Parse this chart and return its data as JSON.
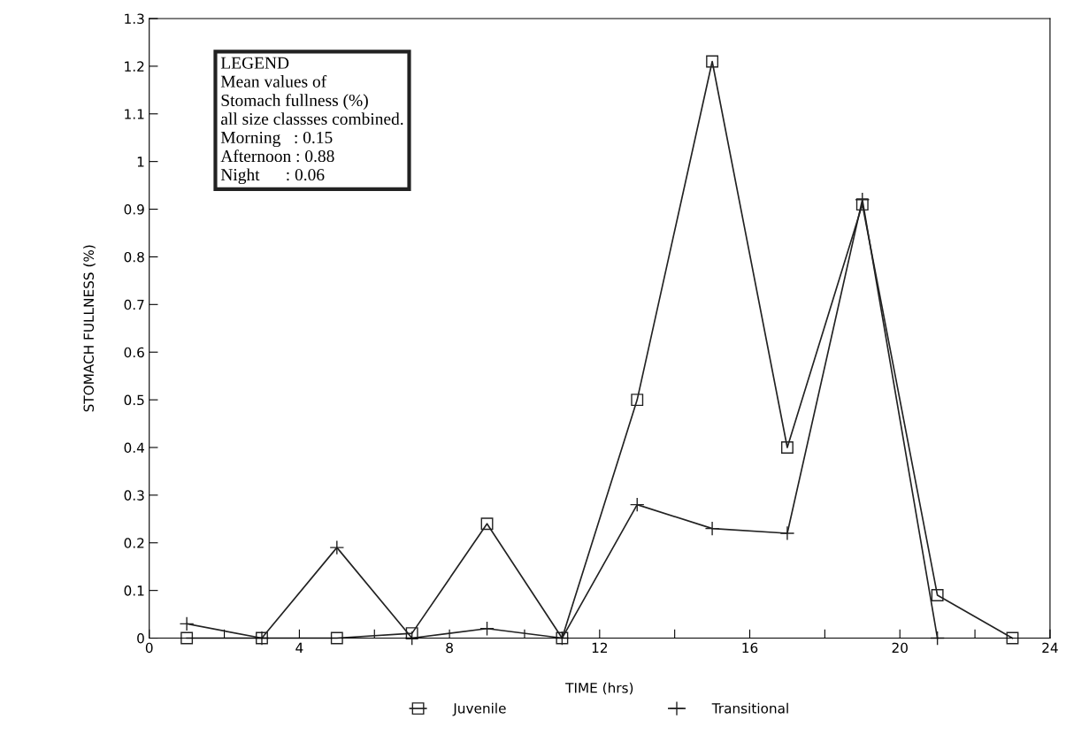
{
  "chart_data": {
    "type": "line",
    "xlabel": "TIME (hrs)",
    "ylabel": "STOMACH FULLNESS (%)",
    "xlim": [
      0,
      24
    ],
    "ylim": [
      0,
      1.3
    ],
    "xticks": [
      0,
      {
        "value": 2,
        "label": null
      },
      4,
      {
        "value": 6,
        "label": null
      },
      8,
      {
        "value": 10,
        "label": null
      },
      12,
      {
        "value": 14,
        "label": null
      },
      16,
      {
        "value": 18,
        "label": null
      },
      20,
      {
        "value": 22,
        "label": null
      },
      24
    ],
    "yticks": [
      0,
      0.1,
      0.2,
      0.3,
      0.4,
      0.5,
      0.6,
      0.7,
      0.8,
      0.9,
      1,
      1.1,
      1.2,
      1.3
    ],
    "grid": false,
    "legend": "bottom",
    "line_style": "solid",
    "series": [
      {
        "name": "Juvenile",
        "color": "#222222",
        "marker": "square",
        "x": [
          1,
          3,
          5,
          7,
          9,
          11,
          13,
          15,
          17,
          19,
          21,
          23
        ],
        "values": [
          0,
          0,
          0,
          0.01,
          0.24,
          0,
          0.5,
          1.21,
          0.4,
          0.91,
          0.09,
          0
        ]
      },
      {
        "name": "Transitional",
        "color": "#222222",
        "marker": "cross",
        "x": [
          1,
          3,
          5,
          7,
          9,
          11,
          13,
          15,
          17,
          19,
          21
        ],
        "values": [
          0.03,
          0,
          0.19,
          0,
          0.02,
          0,
          0.28,
          0.23,
          0.22,
          0.92,
          0
        ]
      }
    ],
    "annotations": [
      "LEGEND",
      "Mean values of",
      "Stomach fullness (%)",
      "all size classses combined.",
      "Morning   : 0.15",
      "Afternoon : 0.88",
      "Night      : 0.06"
    ]
  }
}
